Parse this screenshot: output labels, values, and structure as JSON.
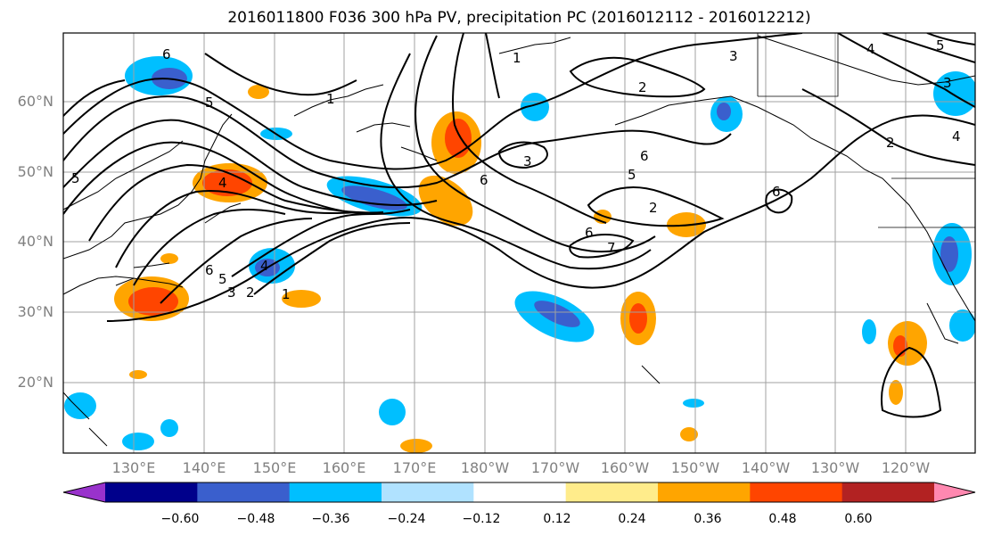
{
  "title": "2016011800 F036 300 hPa PV, precipitation PC (2016012112 - 2016012212)",
  "lat_labels": [
    "60°N",
    "50°N",
    "40°N",
    "30°N",
    "20°N"
  ],
  "lon_labels": [
    "130°E",
    "140°E",
    "150°E",
    "160°E",
    "170°E",
    "180°W",
    "170°W",
    "160°W",
    "150°W",
    "140°W",
    "130°W",
    "120°W"
  ],
  "colorbar": {
    "tick_labels": [
      "−0.60",
      "−0.48",
      "−0.36",
      "−0.24",
      "−0.12",
      "0.12",
      "0.24",
      "0.36",
      "0.48",
      "0.60"
    ],
    "colors": [
      "#9932cc",
      "#00008b",
      "#3a5fcd",
      "#00bfff",
      "#b0e2ff",
      "#ffffff",
      "#ffec8b",
      "#ffa500",
      "#ff4500",
      "#b22222",
      "#ff88b0"
    ]
  },
  "contour_labels": [
    "6",
    "5",
    "4",
    "3",
    "2",
    "1",
    "6",
    "5",
    "4",
    "3",
    "2",
    "1",
    "6",
    "7",
    "6",
    "5",
    "2",
    "3",
    "4",
    "6",
    "2",
    "3",
    "4",
    "5",
    "6",
    "5",
    "1"
  ]
}
